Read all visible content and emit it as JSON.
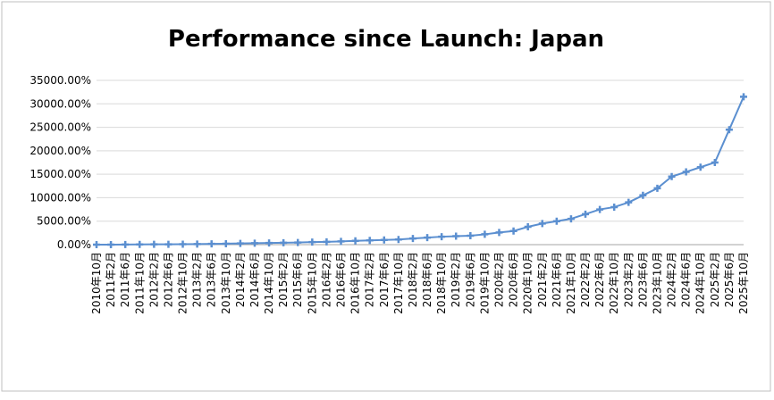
{
  "chart_data": {
    "type": "line",
    "title": "Performance since Launch: Japan",
    "categories": [
      "2010年10月",
      "2011年2月",
      "2011年6月",
      "2011年10月",
      "2012年2月",
      "2012年6月",
      "2012年10月",
      "2013年2月",
      "2013年6月",
      "2013年10月",
      "2014年2月",
      "2014年6月",
      "2014年10月",
      "2015年2月",
      "2015年6月",
      "2015年10月",
      "2016年2月",
      "2016年6月",
      "2016年10月",
      "2017年2月",
      "2017年6月",
      "2017年10月",
      "2018年2月",
      "2018年6月",
      "2018年10月",
      "2019年2月",
      "2019年6月",
      "2019年10月",
      "2020年2月",
      "2020年6月",
      "2020年10月",
      "2021年2月",
      "2021年6月",
      "2021年10月",
      "2022年2月",
      "2022年6月",
      "2022年10月",
      "2023年2月",
      "2023年6月",
      "2023年10月",
      "2024年2月",
      "2024年6月",
      "2024年10月",
      "2025年2月",
      "2025年6月",
      "2025年10月"
    ],
    "series": [
      {
        "name": "Japan",
        "color": "#5b8fd0",
        "values": [
          0,
          10,
          20,
          40,
          60,
          80,
          100,
          130,
          160,
          200,
          250,
          300,
          350,
          400,
          450,
          550,
          600,
          700,
          800,
          900,
          1000,
          1100,
          1300,
          1500,
          1700,
          1800,
          1900,
          2200,
          2600,
          2900,
          3800,
          4500,
          5000,
          5500,
          6500,
          7500,
          8000,
          9000,
          10500,
          12000,
          14500,
          15500,
          16500,
          17500,
          24500,
          31500
        ]
      }
    ],
    "ylim": [
      0,
      35000
    ],
    "yticks": [
      {
        "value": 0,
        "label": "0.00%"
      },
      {
        "value": 5000,
        "label": "5000.00%"
      },
      {
        "value": 10000,
        "label": "10000.00%"
      },
      {
        "value": 15000,
        "label": "15000.00%"
      },
      {
        "value": 20000,
        "label": "20000.00%"
      },
      {
        "value": 25000,
        "label": "25000.00%"
      },
      {
        "value": 30000,
        "label": "30000.00%"
      },
      {
        "value": 35000,
        "label": "35000.00%"
      }
    ],
    "grid": true
  }
}
